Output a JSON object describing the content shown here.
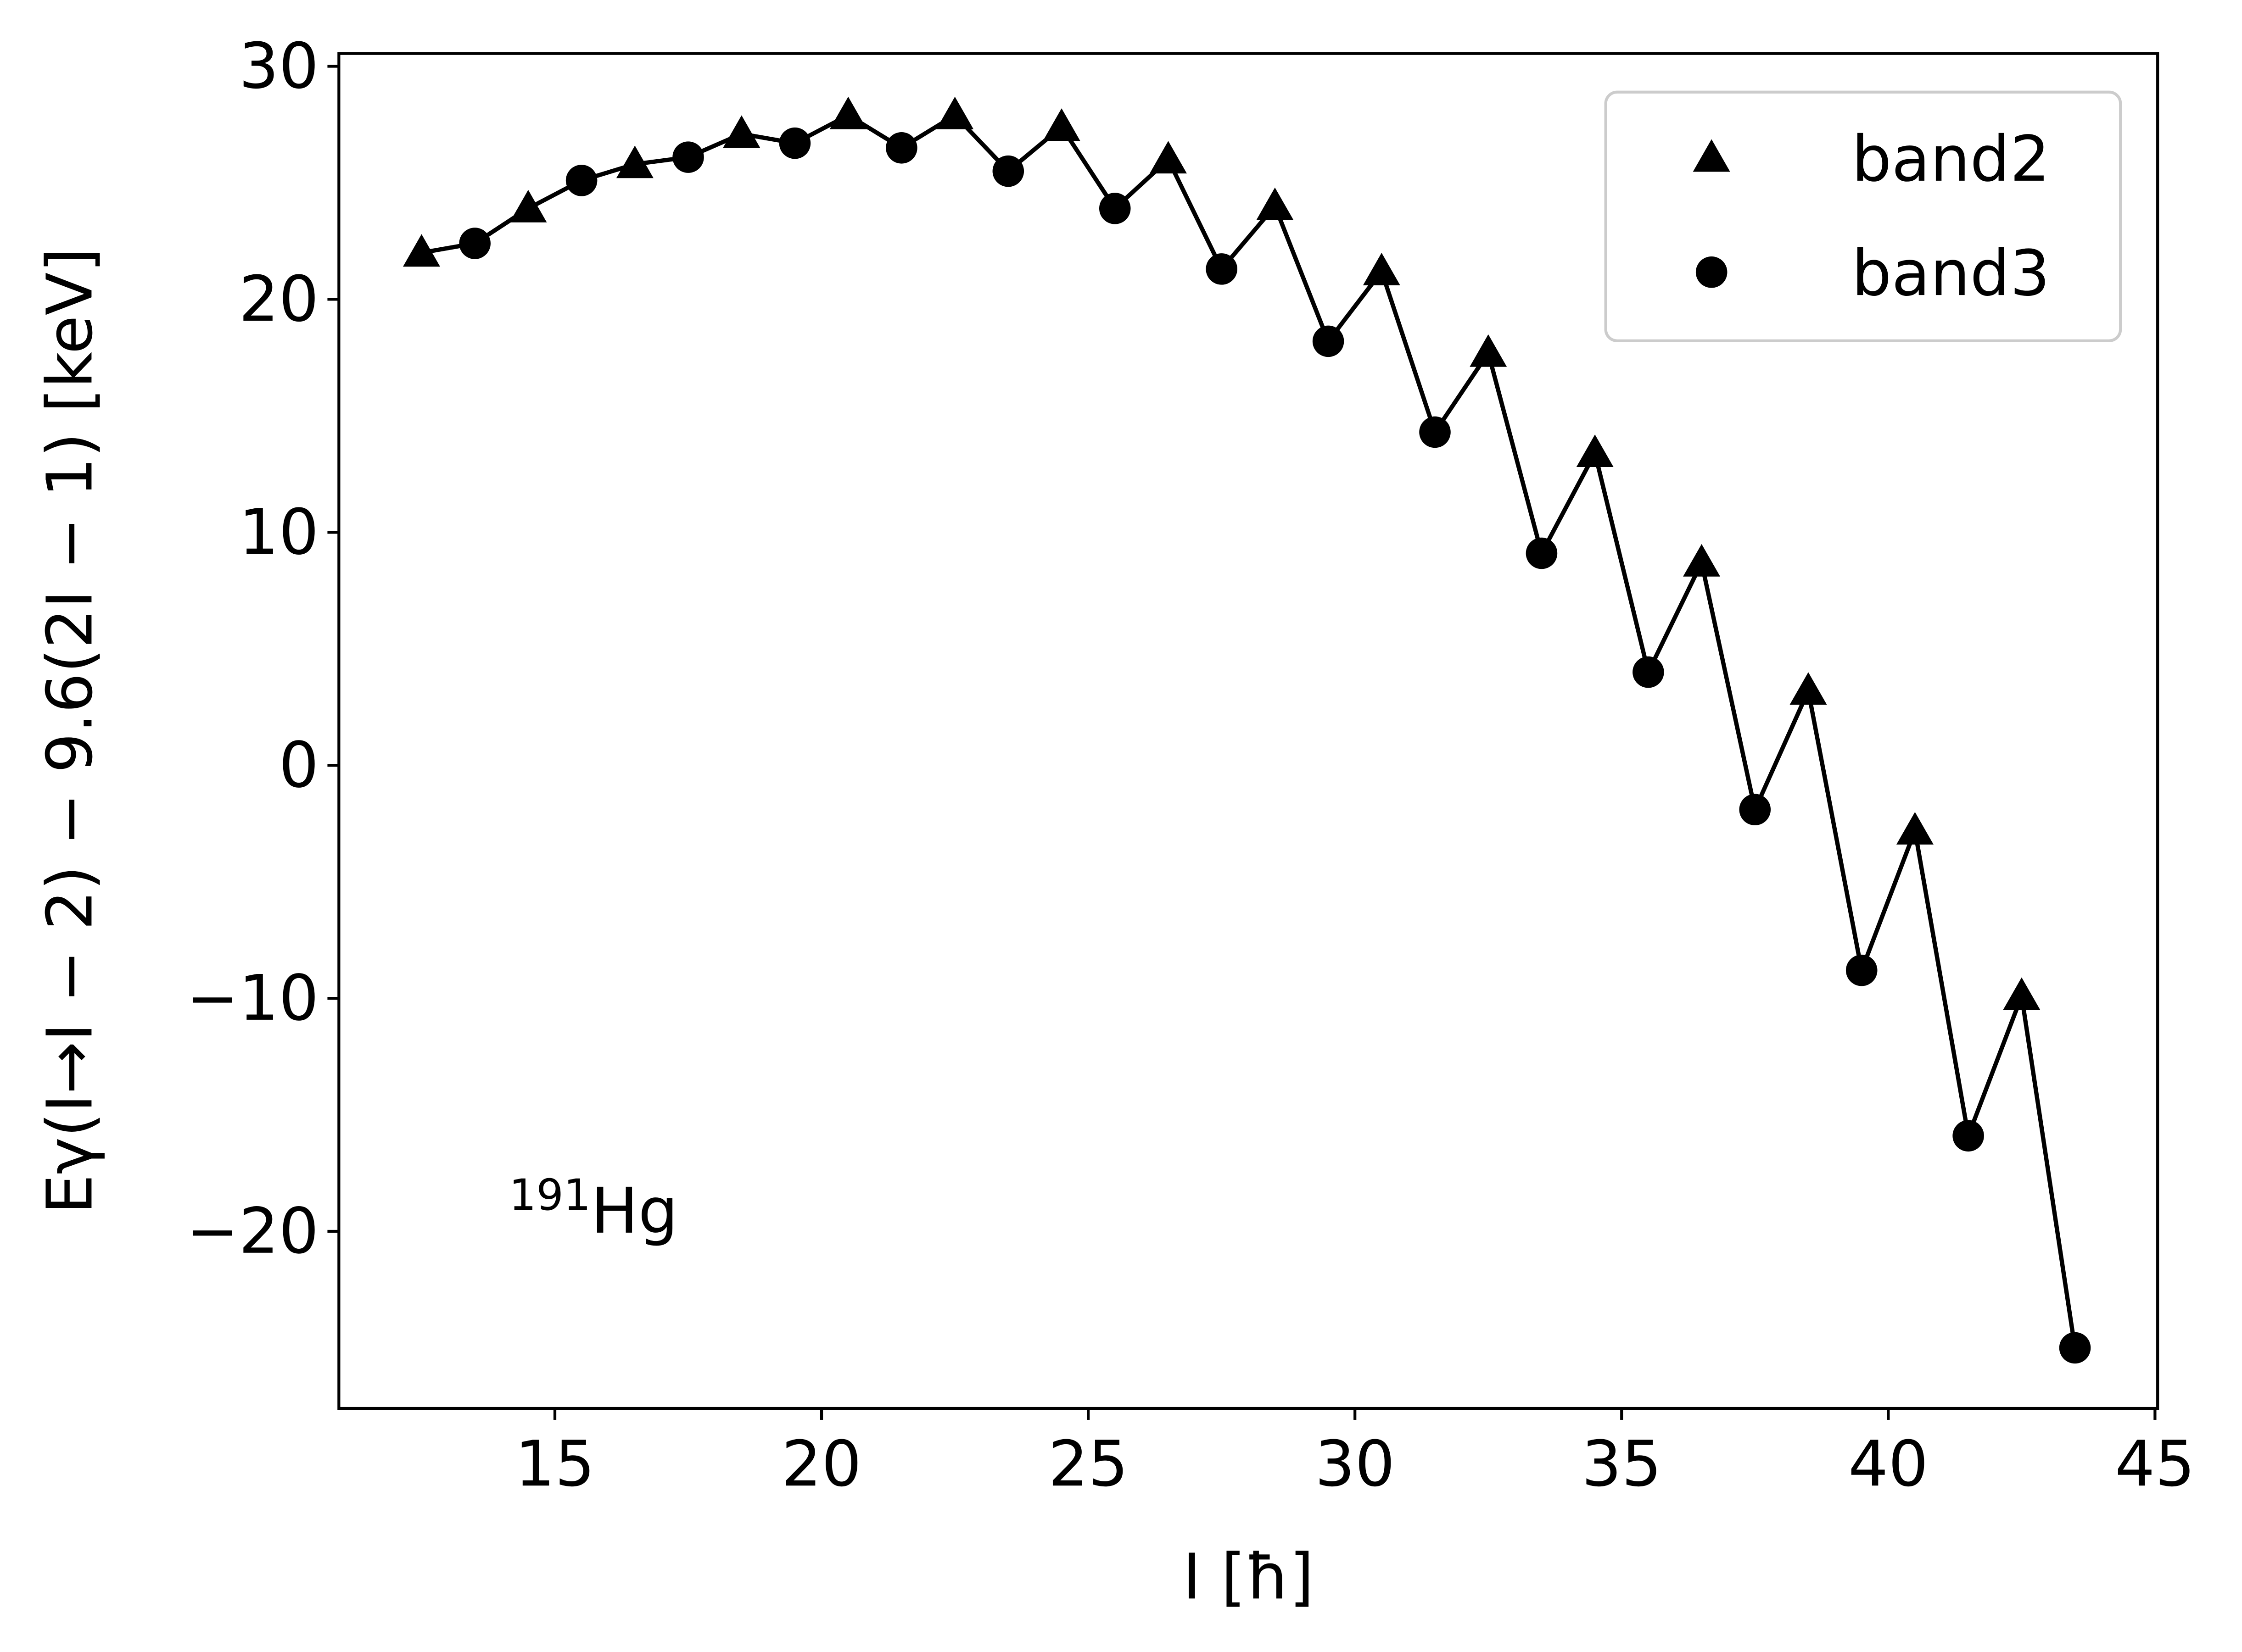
{
  "chart_data": {
    "type": "line",
    "xlabel": "I [ħ]",
    "ylabel": "Eγ(I→I − 2) − 9.6(2I − 1) [keV]",
    "annotation": {
      "mass": "191",
      "element": "Hg"
    },
    "xlim": [
      10.95,
      45.05
    ],
    "ylim": [
      -27.6,
      30.55
    ],
    "xticks": [
      15,
      20,
      25,
      30,
      35,
      40,
      45
    ],
    "yticks": [
      {
        "value": -20,
        "label": "−20"
      },
      {
        "value": -10,
        "label": "−10"
      },
      0,
      10,
      20,
      30
    ],
    "legend": "upper right",
    "line_color": "#000000",
    "series": [
      {
        "name": "band2",
        "marker": "triangle",
        "color": "#000000",
        "x": [
          12.5,
          14.5,
          16.5,
          18.5,
          20.5,
          22.5,
          24.5,
          26.5,
          28.5,
          30.5,
          32.5,
          34.5,
          36.5,
          38.5,
          40.5,
          42.5
        ],
        "values": [
          22.0,
          23.9,
          25.8,
          27.1,
          27.9,
          27.9,
          27.4,
          26.0,
          24.0,
          21.2,
          17.7,
          13.4,
          8.7,
          3.2,
          -2.8,
          -9.9
        ]
      },
      {
        "name": "band3",
        "marker": "circle",
        "color": "#000000",
        "x": [
          13.5,
          15.5,
          17.5,
          19.5,
          21.5,
          23.5,
          25.5,
          27.5,
          29.5,
          31.5,
          33.5,
          35.5,
          37.5,
          39.5,
          41.5,
          43.5
        ],
        "values": [
          22.4,
          25.1,
          26.1,
          26.7,
          26.5,
          25.5,
          23.9,
          21.3,
          18.2,
          14.3,
          9.1,
          4.0,
          -1.9,
          -8.8,
          -15.9,
          -25.0
        ]
      }
    ]
  }
}
